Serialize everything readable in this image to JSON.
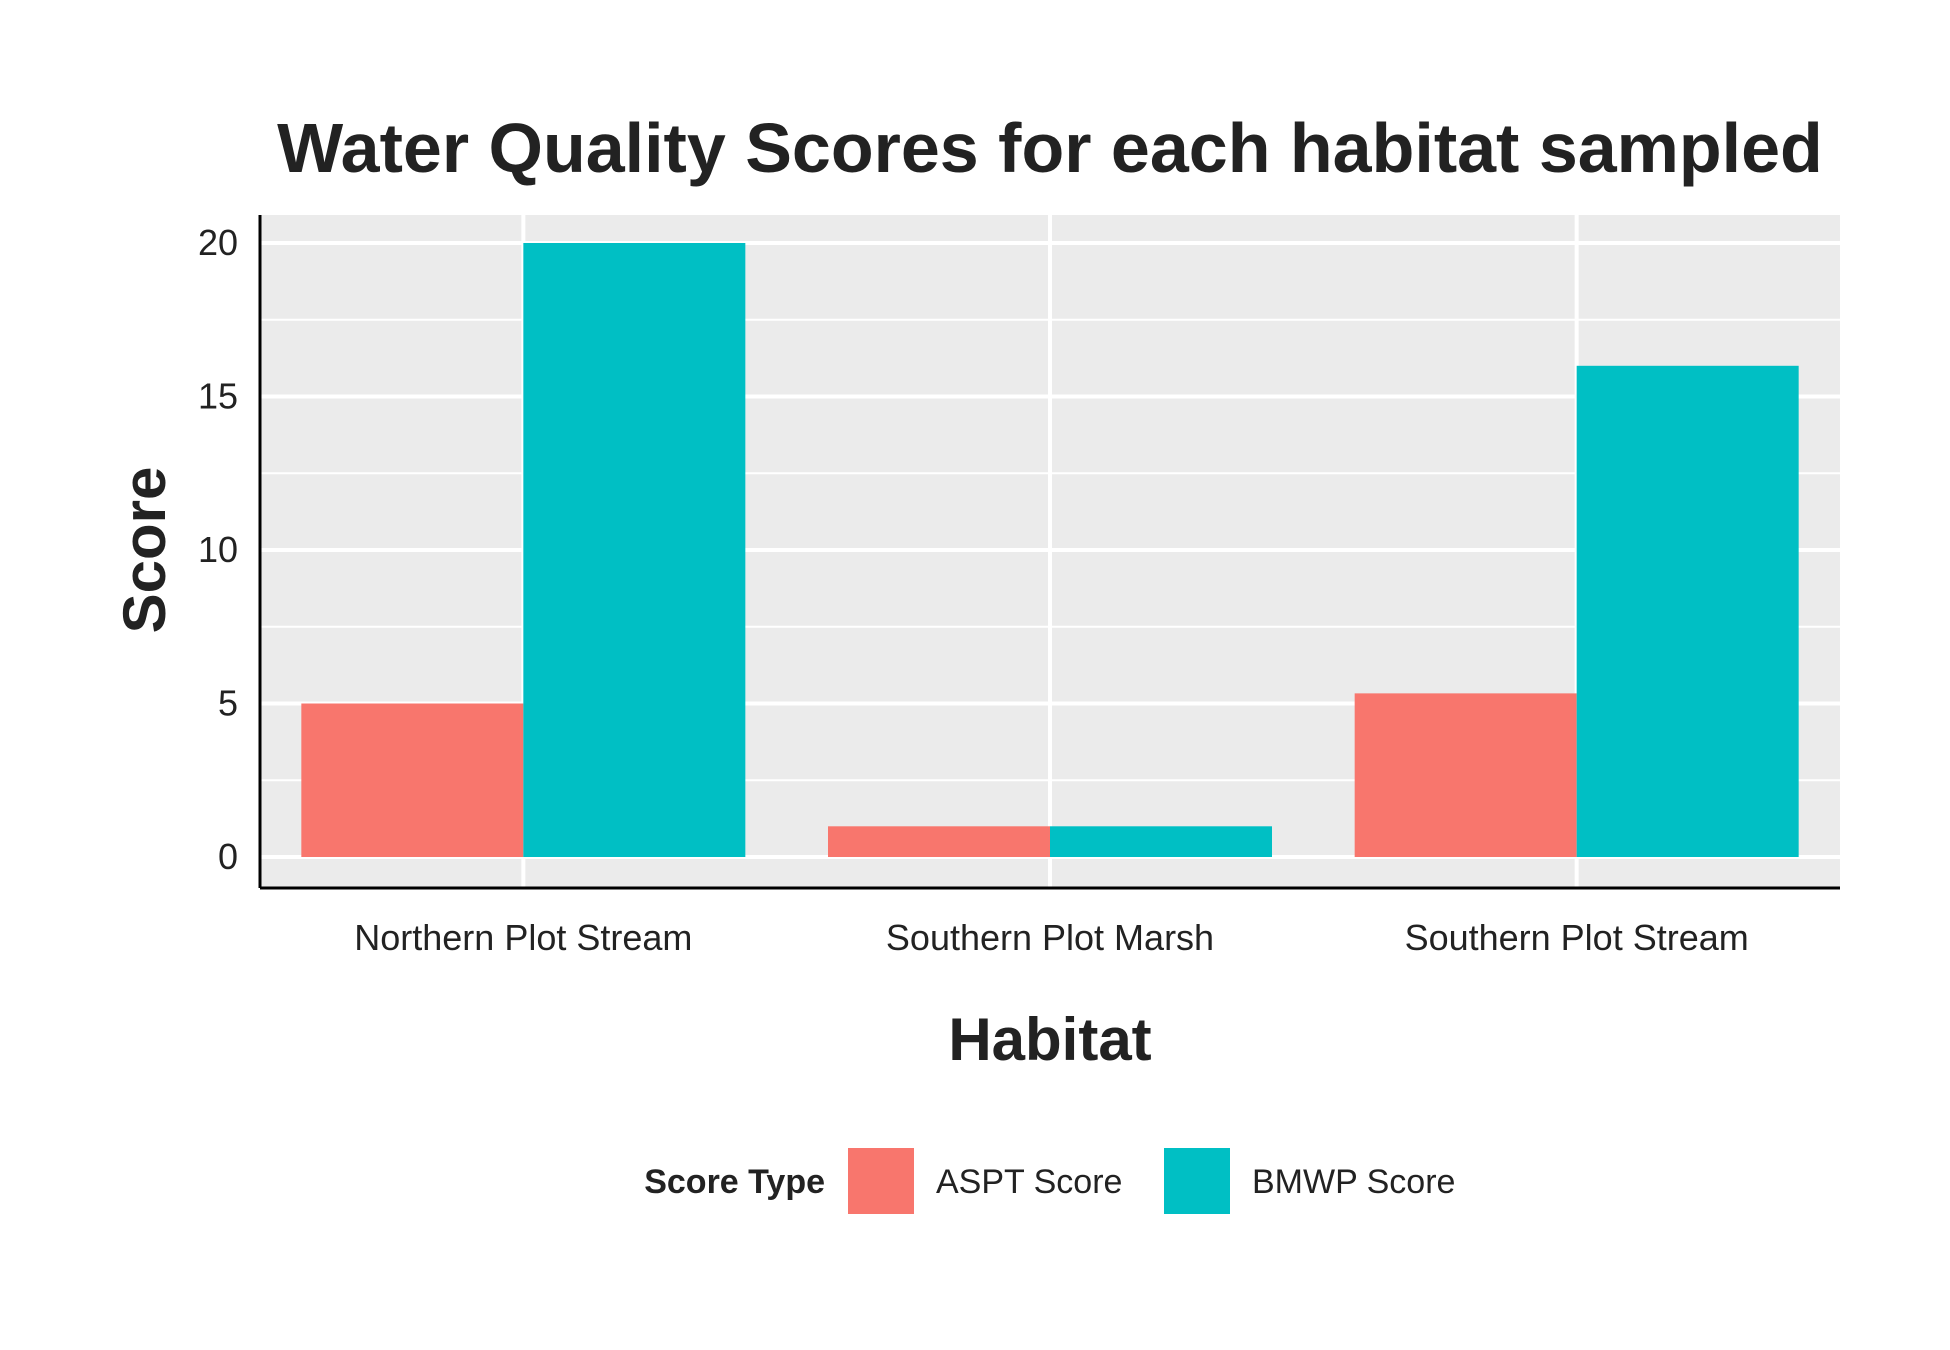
{
  "chart_data": {
    "type": "bar",
    "title": "Water Quality Scores for each habitat sampled",
    "xlabel": "Habitat",
    "ylabel": "Score",
    "categories": [
      "Northern Plot Stream",
      "Southern Plot Marsh",
      "Southern Plot Stream"
    ],
    "series": [
      {
        "name": "ASPT Score",
        "values": [
          5,
          1,
          5.33
        ],
        "color": "#F8766D"
      },
      {
        "name": "BMWP Score",
        "values": [
          20,
          1,
          16
        ],
        "color": "#00BFC4"
      }
    ],
    "ylim": [
      0,
      21
    ],
    "yticks": [
      0,
      5,
      10,
      15,
      20
    ],
    "ytick_labels": [
      "0",
      "5",
      "10",
      "15",
      "20"
    ],
    "grid": true,
    "panel_color": "#EBEBEB",
    "legend": {
      "title": "Score Type",
      "position": "bottom"
    }
  }
}
